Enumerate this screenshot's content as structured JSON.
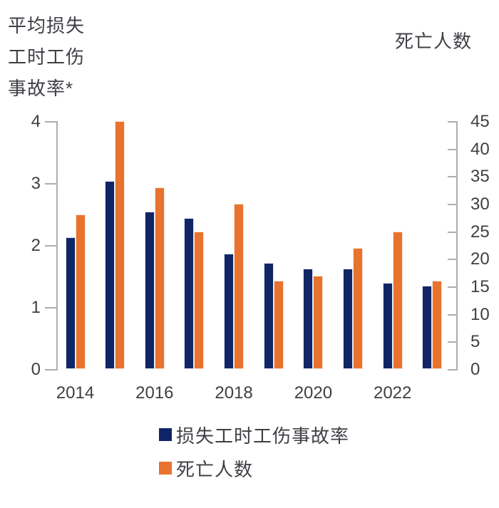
{
  "chart_data": {
    "type": "bar",
    "title_left_lines": [
      "平均损失",
      "工时工伤",
      "事故率*"
    ],
    "title_right": "死亡人数",
    "categories": [
      2014,
      2015,
      2016,
      2017,
      2018,
      2019,
      2020,
      2021,
      2022,
      2023
    ],
    "series": [
      {
        "name": "损失工时工伤事故率",
        "axis": "left",
        "color": "#102566",
        "values": [
          2.13,
          3.03,
          2.54,
          2.44,
          1.86,
          1.71,
          1.62,
          1.62,
          1.39,
          1.35
        ]
      },
      {
        "name": "死亡人数",
        "axis": "right",
        "color": "#e8732e",
        "values": [
          28,
          45,
          33,
          25,
          30,
          16,
          17,
          22,
          25,
          16
        ]
      }
    ],
    "left_axis": {
      "min": 0,
      "max": 4,
      "ticks": [
        0,
        1,
        2,
        3,
        4
      ]
    },
    "right_axis": {
      "min": 0,
      "max": 45,
      "ticks": [
        0,
        5,
        10,
        15,
        20,
        25,
        30,
        35,
        40,
        45
      ]
    },
    "x_tick_labels": [
      "2014",
      "2016",
      "2018",
      "2020",
      "2022"
    ],
    "legend": [
      {
        "label": "损失工时工伤事故率",
        "color": "#102566"
      },
      {
        "label": "死亡人数",
        "color": "#e8732e"
      }
    ],
    "grid": false,
    "legend_position": "bottom-left-stacked"
  },
  "colors": {
    "bar_rate": "#102566",
    "bar_deaths": "#e8732e",
    "axis_line": "#aeaeae",
    "text": "#404040"
  }
}
